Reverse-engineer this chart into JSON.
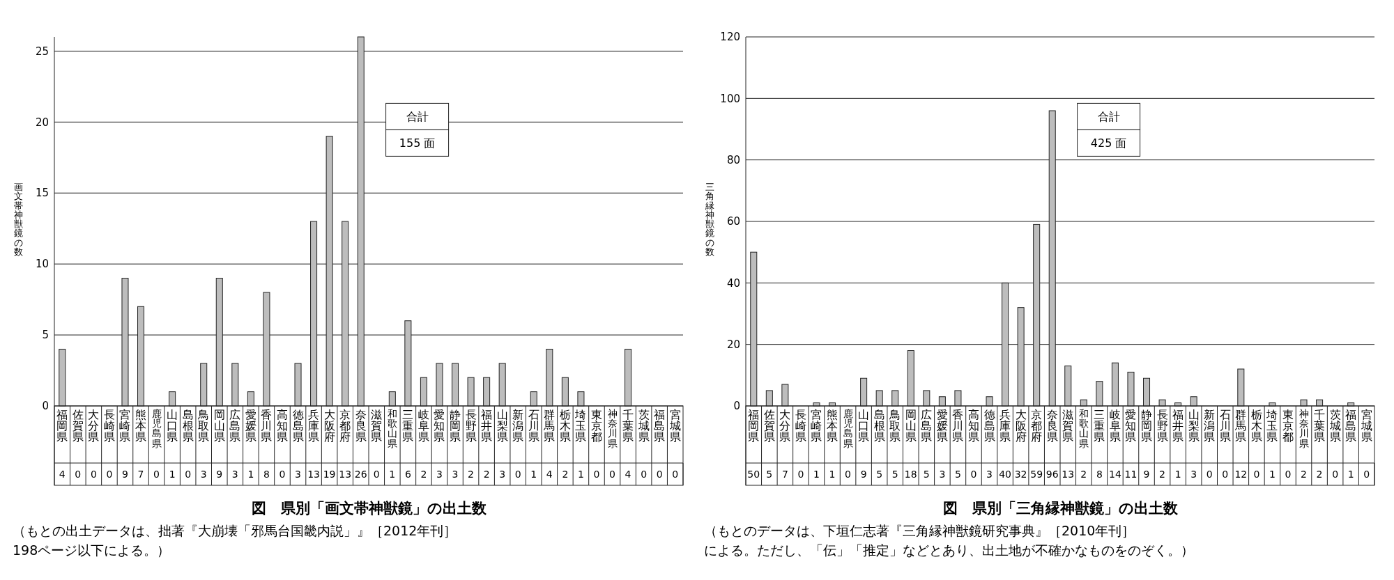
{
  "chart_data": [
    {
      "type": "bar",
      "title": "図　県別「画文帯神獣鏡」の出土数",
      "ylabel": "画文帯神獣鏡の数",
      "categories": [
        "福岡県",
        "佐賀県",
        "大分県",
        "長崎県",
        "宮崎県",
        "熊本県",
        "鹿児島県",
        "山口県",
        "島根県",
        "鳥取県",
        "岡山県",
        "広島県",
        "愛媛県",
        "香川県",
        "高知県",
        "徳島県",
        "兵庫県",
        "大阪府",
        "京都府",
        "奈良県",
        "滋賀県",
        "和歌山県",
        "三重県",
        "岐阜県",
        "愛知県",
        "静岡県",
        "長野県",
        "福井県",
        "山梨県",
        "新潟県",
        "石川県",
        "群馬県",
        "栃木県",
        "埼玉県",
        "東京都",
        "神奈川県",
        "千葉県",
        "茨城県",
        "福島県",
        "宮城県"
      ],
      "values": [
        4,
        0,
        0,
        0,
        9,
        7,
        0,
        1,
        0,
        3,
        9,
        3,
        1,
        8,
        0,
        3,
        13,
        19,
        13,
        26,
        0,
        1,
        6,
        2,
        3,
        3,
        2,
        2,
        3,
        0,
        1,
        4,
        2,
        1,
        0,
        0,
        4,
        0,
        0,
        0
      ],
      "color": "#bdbdbd",
      "ylim": [
        0,
        26
      ],
      "yticks": [
        0,
        5,
        10,
        15,
        20,
        25
      ],
      "grid": "y",
      "data_labels": true,
      "annotations": [
        "合計",
        "155 面",
        "（もとの出土データは、拙著『大崩壊「邪馬台国畿内説」』［2012年刊］",
        "198ページ以下による。）"
      ]
    },
    {
      "type": "bar",
      "title": "図　県別「三角縁神獣鏡」の出土数",
      "ylabel": "三角縁神獣鏡の数",
      "categories": [
        "福岡県",
        "佐賀県",
        "大分県",
        "長崎県",
        "宮崎県",
        "熊本県",
        "鹿児島県",
        "山口県",
        "島根県",
        "鳥取県",
        "岡山県",
        "広島県",
        "愛媛県",
        "香川県",
        "高知県",
        "徳島県",
        "兵庫県",
        "大阪府",
        "京都府",
        "奈良県",
        "滋賀県",
        "和歌山県",
        "三重県",
        "岐阜県",
        "愛知県",
        "静岡県",
        "長野県",
        "福井県",
        "山梨県",
        "新潟県",
        "石川県",
        "群馬県",
        "栃木県",
        "埼玉県",
        "東京都",
        "神奈川県",
        "千葉県",
        "茨城県",
        "福島県",
        "宮城県"
      ],
      "values": [
        50,
        5,
        7,
        0,
        1,
        1,
        0,
        9,
        5,
        5,
        18,
        5,
        3,
        5,
        0,
        3,
        40,
        32,
        59,
        96,
        13,
        2,
        8,
        14,
        11,
        9,
        2,
        1,
        3,
        0,
        0,
        12,
        0,
        1,
        0,
        2,
        2,
        0,
        1,
        0
      ],
      "color": "#bdbdbd",
      "ylim": [
        0,
        120
      ],
      "yticks": [
        0,
        20,
        40,
        60,
        80,
        100,
        120
      ],
      "grid": "y",
      "data_labels": true,
      "annotations": [
        "合計",
        "425 面",
        "（もとのデータは、下垣仁志著『三角縁神獣鏡研究事典』［2010年刊］",
        "による。ただし、「伝」「推定」などとあり、出土地が不確かなものをのぞく。）"
      ]
    }
  ]
}
